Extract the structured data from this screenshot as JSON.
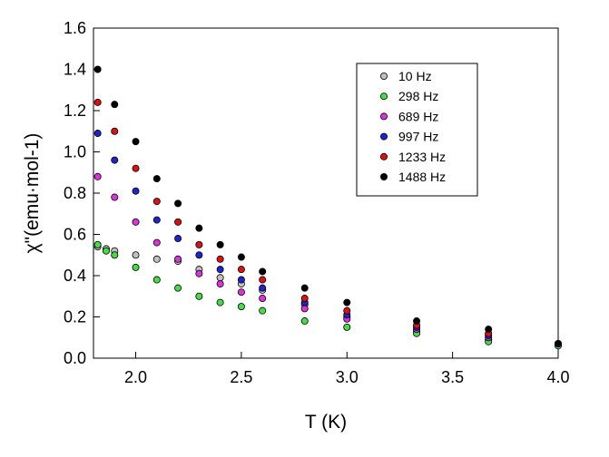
{
  "chart_data": {
    "type": "scatter",
    "title": "",
    "xlabel": "T (K)",
    "ylabel": "χ\"(emu·mol-1)",
    "xlim": [
      1.8,
      4.0
    ],
    "ylim": [
      0.0,
      1.6
    ],
    "x_ticks": [
      "2.0",
      "2.5",
      "3.0",
      "3.5",
      "4.0"
    ],
    "y_ticks": [
      "0.0",
      "0.2",
      "0.4",
      "0.6",
      "0.8",
      "1.0",
      "1.2",
      "1.4",
      "1.6"
    ],
    "grid": false,
    "legend_position": "top-right",
    "series": [
      {
        "name": "10 Hz",
        "color": "#c0c0c0",
        "x": [
          1.82,
          1.86,
          1.9,
          2.0,
          2.1,
          2.2,
          2.3,
          2.4,
          2.5,
          2.6,
          2.8,
          3.0,
          3.33,
          3.67,
          4.0
        ],
        "y": [
          0.54,
          0.53,
          0.52,
          0.5,
          0.48,
          0.47,
          0.43,
          0.39,
          0.36,
          0.33,
          0.26,
          0.2,
          0.13,
          0.09,
          0.07
        ]
      },
      {
        "name": "298 Hz",
        "color": "#44dd44",
        "x": [
          1.82,
          1.86,
          1.9,
          2.0,
          2.1,
          2.2,
          2.3,
          2.4,
          2.5,
          2.6,
          2.8,
          3.0,
          3.33,
          3.67,
          4.0
        ],
        "y": [
          0.55,
          0.52,
          0.5,
          0.44,
          0.38,
          0.34,
          0.3,
          0.27,
          0.25,
          0.23,
          0.18,
          0.15,
          0.12,
          0.08,
          0.06
        ]
      },
      {
        "name": "689 Hz",
        "color": "#dd33dd",
        "x": [
          1.82,
          1.9,
          2.0,
          2.1,
          2.2,
          2.3,
          2.4,
          2.5,
          2.6,
          2.8,
          3.0,
          3.33,
          3.67,
          4.0
        ],
        "y": [
          0.88,
          0.78,
          0.66,
          0.56,
          0.48,
          0.41,
          0.36,
          0.32,
          0.29,
          0.24,
          0.19,
          0.14,
          0.1,
          0.07
        ]
      },
      {
        "name": "997 Hz",
        "color": "#2222cc",
        "x": [
          1.82,
          1.9,
          2.0,
          2.1,
          2.2,
          2.3,
          2.4,
          2.5,
          2.6,
          2.8,
          3.0,
          3.33,
          3.67,
          4.0
        ],
        "y": [
          1.09,
          0.96,
          0.81,
          0.67,
          0.58,
          0.5,
          0.43,
          0.38,
          0.34,
          0.27,
          0.21,
          0.15,
          0.11,
          0.07
        ]
      },
      {
        "name": "1233 Hz",
        "color": "#dd1111",
        "x": [
          1.82,
          1.9,
          2.0,
          2.1,
          2.2,
          2.3,
          2.4,
          2.5,
          2.6,
          2.8,
          3.0,
          3.33,
          3.67,
          4.0
        ],
        "y": [
          1.24,
          1.1,
          0.92,
          0.76,
          0.66,
          0.55,
          0.48,
          0.43,
          0.38,
          0.29,
          0.23,
          0.16,
          0.12,
          0.07
        ]
      },
      {
        "name": "1488 Hz",
        "color": "#000000",
        "x": [
          1.82,
          1.9,
          2.0,
          2.1,
          2.2,
          2.3,
          2.4,
          2.5,
          2.6,
          2.8,
          3.0,
          3.33,
          3.67,
          4.0
        ],
        "y": [
          1.4,
          1.23,
          1.05,
          0.87,
          0.75,
          0.63,
          0.55,
          0.49,
          0.42,
          0.34,
          0.27,
          0.18,
          0.14,
          0.07
        ]
      }
    ]
  }
}
